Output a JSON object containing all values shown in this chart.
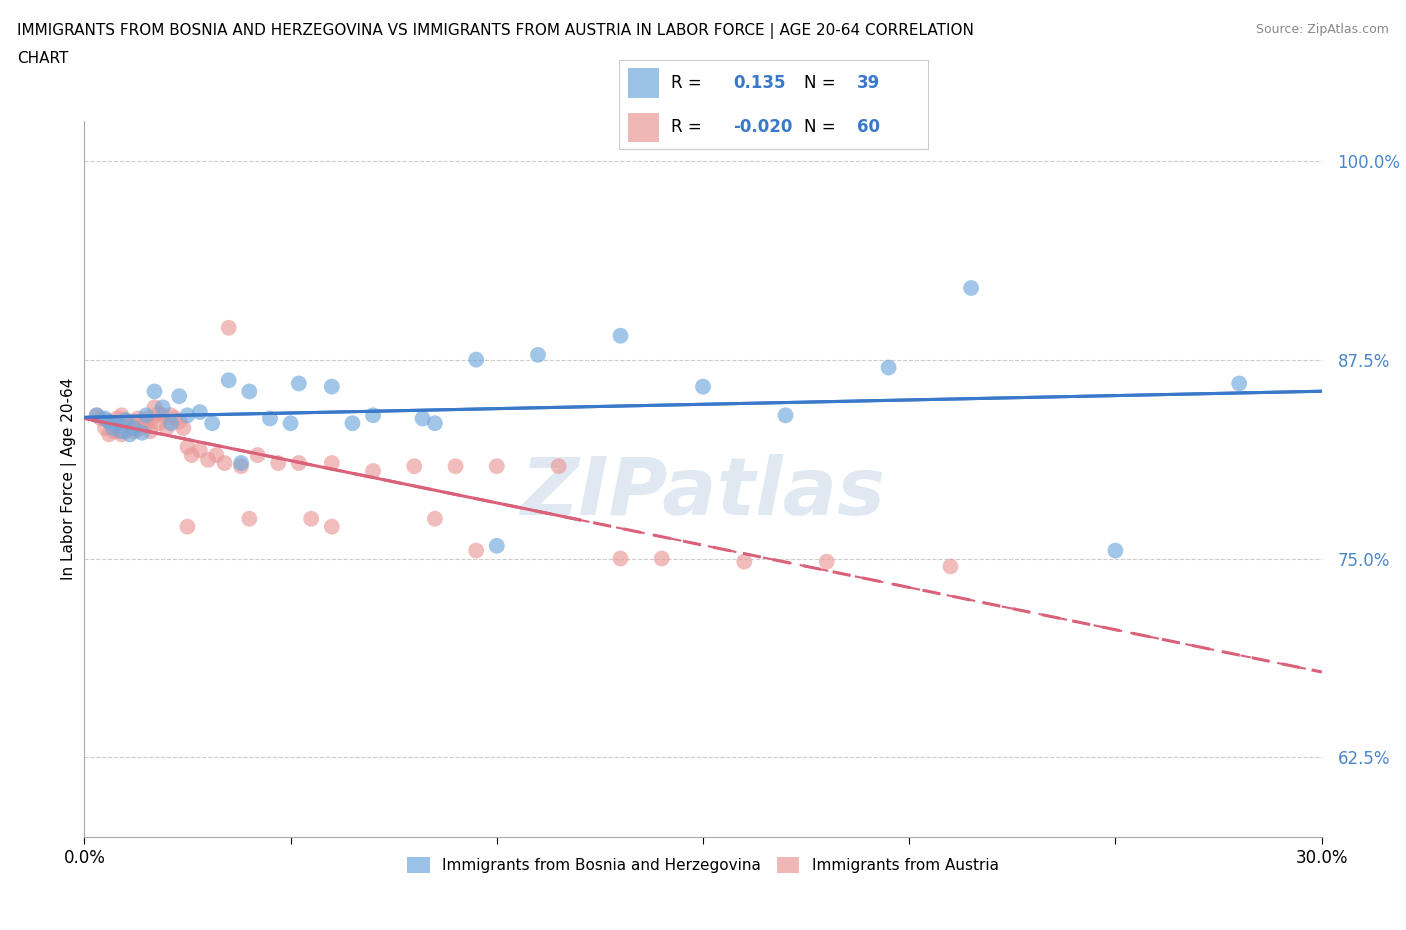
{
  "title_line1": "IMMIGRANTS FROM BOSNIA AND HERZEGOVINA VS IMMIGRANTS FROM AUSTRIA IN LABOR FORCE | AGE 20-64 CORRELATION",
  "title_line2": "CHART",
  "source": "Source: ZipAtlas.com",
  "ylabel": "In Labor Force | Age 20-64",
  "xlim": [
    0.0,
    0.3
  ],
  "ylim": [
    0.575,
    1.025
  ],
  "yticks": [
    0.625,
    0.75,
    0.875,
    1.0
  ],
  "ytick_labels": [
    "62.5%",
    "75.0%",
    "87.5%",
    "100.0%"
  ],
  "xticks": [
    0.0,
    0.05,
    0.1,
    0.15,
    0.2,
    0.25,
    0.3
  ],
  "xtick_labels": [
    "0.0%",
    "",
    "",
    "",
    "",
    "",
    "30.0%"
  ],
  "blue_color": "#6fa8dc",
  "pink_color": "#ea9999",
  "blue_line_color": "#3a78c9",
  "pink_line_color": "#d9617a",
  "background_color": "#ffffff",
  "grid_color": "#cccccc",
  "watermark": "ZIPatlas",
  "blue_scatter_x": [
    0.003,
    0.005,
    0.006,
    0.007,
    0.008,
    0.009,
    0.01,
    0.011,
    0.012,
    0.014,
    0.015,
    0.017,
    0.019,
    0.021,
    0.023,
    0.025,
    0.028,
    0.031,
    0.035,
    0.04,
    0.045,
    0.052,
    0.06,
    0.07,
    0.082,
    0.095,
    0.11,
    0.13,
    0.15,
    0.17,
    0.195,
    0.215,
    0.25,
    0.28,
    0.038,
    0.05,
    0.065,
    0.085,
    0.1
  ],
  "blue_scatter_y": [
    0.84,
    0.838,
    0.836,
    0.832,
    0.835,
    0.83,
    0.837,
    0.828,
    0.832,
    0.829,
    0.84,
    0.855,
    0.845,
    0.835,
    0.852,
    0.84,
    0.842,
    0.835,
    0.862,
    0.855,
    0.838,
    0.86,
    0.858,
    0.84,
    0.838,
    0.875,
    0.878,
    0.89,
    0.858,
    0.84,
    0.87,
    0.92,
    0.755,
    0.86,
    0.81,
    0.835,
    0.835,
    0.835,
    0.758
  ],
  "pink_scatter_x": [
    0.003,
    0.004,
    0.005,
    0.006,
    0.006,
    0.007,
    0.007,
    0.008,
    0.008,
    0.009,
    0.009,
    0.01,
    0.01,
    0.011,
    0.012,
    0.012,
    0.013,
    0.013,
    0.014,
    0.015,
    0.015,
    0.016,
    0.016,
    0.017,
    0.018,
    0.018,
    0.019,
    0.02,
    0.021,
    0.022,
    0.023,
    0.024,
    0.025,
    0.026,
    0.028,
    0.03,
    0.032,
    0.034,
    0.038,
    0.042,
    0.047,
    0.052,
    0.06,
    0.07,
    0.08,
    0.09,
    0.1,
    0.115,
    0.035,
    0.06,
    0.095,
    0.14,
    0.18,
    0.21,
    0.16,
    0.13,
    0.025,
    0.04,
    0.055,
    0.085
  ],
  "pink_scatter_y": [
    0.84,
    0.838,
    0.832,
    0.828,
    0.836,
    0.83,
    0.835,
    0.83,
    0.838,
    0.828,
    0.84,
    0.83,
    0.837,
    0.835,
    0.83,
    0.836,
    0.838,
    0.831,
    0.833,
    0.835,
    0.838,
    0.836,
    0.83,
    0.845,
    0.841,
    0.835,
    0.84,
    0.832,
    0.84,
    0.838,
    0.836,
    0.832,
    0.82,
    0.815,
    0.818,
    0.812,
    0.815,
    0.81,
    0.808,
    0.815,
    0.81,
    0.81,
    0.81,
    0.805,
    0.808,
    0.808,
    0.808,
    0.808,
    0.895,
    0.77,
    0.755,
    0.75,
    0.748,
    0.745,
    0.748,
    0.75,
    0.77,
    0.775,
    0.775,
    0.775
  ],
  "legend_blue_R": "0.135",
  "legend_blue_N": "39",
  "legend_pink_R": "-0.020",
  "legend_pink_N": "60"
}
